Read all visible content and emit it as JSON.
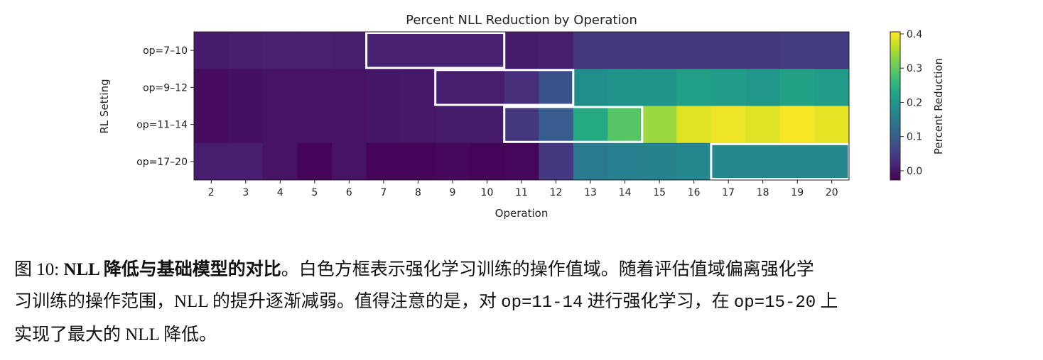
{
  "chart_data": {
    "type": "heatmap",
    "title": "Percent NLL Reduction by Operation",
    "xlabel": "Operation",
    "ylabel": "RL Setting",
    "x": [
      2,
      3,
      4,
      5,
      6,
      7,
      8,
      9,
      10,
      11,
      12,
      13,
      14,
      15,
      16,
      17,
      18,
      19,
      20
    ],
    "rows": [
      "op=7–10",
      "op=9–12",
      "op=11–14",
      "op=17–20"
    ],
    "values": [
      [
        0.005,
        0.008,
        0.012,
        0.012,
        0.008,
        0.012,
        0.012,
        0.012,
        0.012,
        0.005,
        0.008,
        0.04,
        0.04,
        0.042,
        0.045,
        0.045,
        0.045,
        0.048,
        0.048
      ],
      [
        -0.015,
        -0.008,
        -0.005,
        -0.005,
        -0.005,
        0.0,
        0.002,
        0.008,
        0.008,
        0.03,
        0.08,
        0.185,
        0.195,
        0.195,
        0.215,
        0.21,
        0.2,
        0.22,
        0.21
      ],
      [
        -0.015,
        -0.008,
        -0.005,
        -0.005,
        -0.005,
        0.0,
        0.002,
        0.005,
        0.005,
        0.04,
        0.1,
        0.235,
        0.29,
        0.34,
        0.385,
        0.395,
        0.385,
        0.402,
        0.39
      ],
      [
        0.008,
        0.008,
        -0.005,
        -0.022,
        -0.005,
        -0.022,
        -0.022,
        -0.018,
        -0.022,
        -0.02,
        0.04,
        0.15,
        0.16,
        0.165,
        0.17,
        0.172,
        0.172,
        0.172,
        0.172
      ]
    ],
    "training_ranges": [
      [
        7,
        10
      ],
      [
        9,
        12
      ],
      [
        11,
        14
      ],
      [
        17,
        20
      ]
    ],
    "colormap": "viridis",
    "color_range": [
      -0.027,
      0.406
    ],
    "colorbar": {
      "label": "Percent Reduction",
      "ticks": [
        "0.0",
        "0.1",
        "0.2",
        "0.3",
        "0.4"
      ]
    },
    "box_color": "#ffffff",
    "grid": false
  },
  "caption": {
    "label": "图 10: ",
    "bold": "NLL 降低与基础模型的对比",
    "line1_rest": "。白色方框表示强化学习训练的操作值域。随着评估值域偏离强化学",
    "line2a": "习训练的操作范围，NLL 的提升逐渐减弱。值得注意的是，对 ",
    "code1": "op=11-14",
    "line2b": " 进行强化学习，在 ",
    "code2": "op=15-20",
    "line2c": " 上",
    "line3": "实现了最大的 NLL 降低。"
  }
}
